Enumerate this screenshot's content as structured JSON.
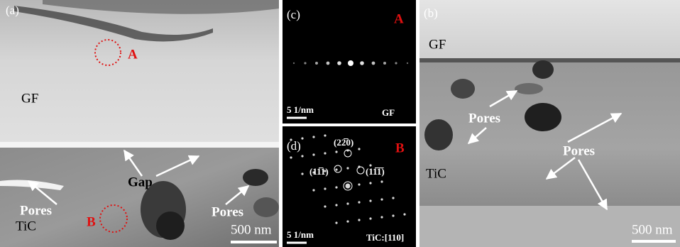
{
  "panels": [
    {
      "label": "(a)",
      "texts": [
        "A",
        "GF",
        "Gap",
        "Pores",
        "Pores",
        "B",
        "TiC"
      ],
      "scale": "500 nm"
    },
    {
      "label": "(c)",
      "texts": [
        "A",
        "GF"
      ],
      "scale": "5 1/nm"
    },
    {
      "label": "(d)",
      "texts": [
        "B",
        "(22̅0)",
        "(11̅1)",
        "(11̅1̅)",
        "TiC:[110]"
      ],
      "scale": "5 1/nm"
    },
    {
      "label": "(b)",
      "texts": [
        "GF",
        "Pores",
        "Pores",
        "TiC"
      ],
      "scale": "500 nm"
    }
  ]
}
